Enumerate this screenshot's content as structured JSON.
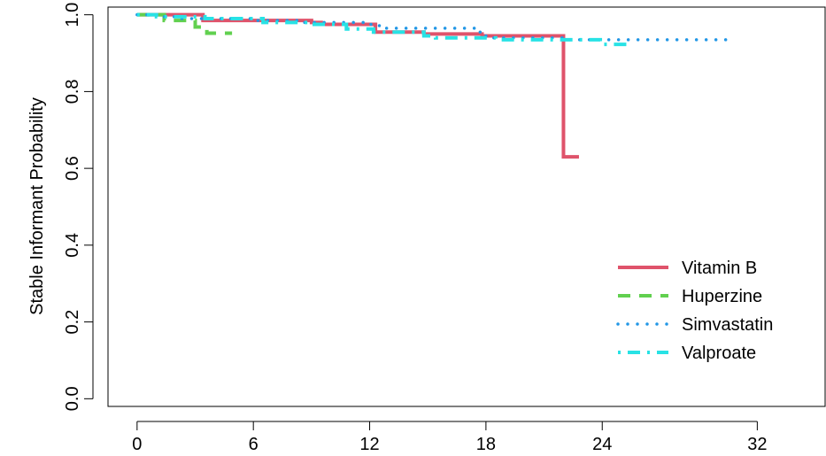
{
  "chart_data": {
    "type": "line",
    "subtype": "step (survival curves)",
    "title": "",
    "xlabel": "",
    "ylabel": "Stable Informant Probability",
    "xlim": [
      -1.5,
      35.5
    ],
    "ylim": [
      -0.02,
      1.02
    ],
    "x_ticks": [
      0,
      6,
      12,
      18,
      24,
      32
    ],
    "y_ticks": [
      0.0,
      0.2,
      0.4,
      0.6,
      0.8,
      1.0
    ],
    "x_tick_labels": [
      "0",
      "6",
      "12",
      "18",
      "24",
      "32"
    ],
    "y_tick_labels": [
      "0.0",
      "0.2",
      "0.4",
      "0.6",
      "0.8",
      "1.0"
    ],
    "legend_position": "bottom-right",
    "series": [
      {
        "name": "Vitamin B",
        "color": "#DF536B",
        "line_style": "solid",
        "x": [
          0,
          3.0,
          3.4,
          9.0,
          9.5,
          11.8,
          12.3,
          14.8,
          17.8,
          18.2,
          22.0,
          22.0,
          22.8
        ],
        "y": [
          1.0,
          1.0,
          0.985,
          0.98,
          0.975,
          0.975,
          0.955,
          0.95,
          0.945,
          0.945,
          0.945,
          0.63,
          0.63
        ]
      },
      {
        "name": "Huperzine",
        "color": "#61D04F",
        "line_style": "dashed",
        "x": [
          0,
          1.4,
          1.4,
          2.2,
          3.0,
          3.0,
          3.6,
          3.6,
          4.9
        ],
        "y": [
          1.0,
          1.0,
          0.985,
          0.985,
          0.985,
          0.968,
          0.968,
          0.952,
          0.952
        ]
      },
      {
        "name": "Simvastatin",
        "color": "#2297E6",
        "line_style": "dotted",
        "x": [
          0,
          1.3,
          2.2,
          6.0,
          8.5,
          12.0,
          12.5,
          15.8,
          17.5,
          18.0,
          22.0,
          24.0,
          30.6
        ],
        "y": [
          1.0,
          0.995,
          0.99,
          0.985,
          0.98,
          0.975,
          0.965,
          0.965,
          0.955,
          0.94,
          0.935,
          0.935,
          0.935
        ]
      },
      {
        "name": "Valproate",
        "color": "#28E2E5",
        "line_style": "dot-dash",
        "x": [
          0,
          1.0,
          3.5,
          6.5,
          9.0,
          10.8,
          12.2,
          14.8,
          15.4,
          17.7,
          18.5,
          23.9,
          24.6,
          25.5
        ],
        "y": [
          1.0,
          0.995,
          0.99,
          0.98,
          0.975,
          0.963,
          0.955,
          0.945,
          0.94,
          0.94,
          0.935,
          0.923,
          0.923,
          0.923
        ]
      }
    ]
  }
}
